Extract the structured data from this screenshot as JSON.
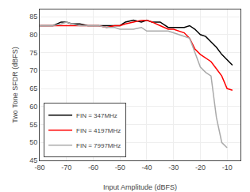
{
  "chart_data": {
    "type": "line",
    "x_label": "Input Amplitude (dBFS)",
    "y_label": "Two Tone SFDR (dBFS)",
    "xlim": [
      -80,
      -5
    ],
    "ylim": [
      45,
      87
    ],
    "xticks": [
      -80,
      -70,
      -60,
      -50,
      -40,
      -30,
      -20,
      -10
    ],
    "yticks": [
      45,
      50,
      55,
      60,
      65,
      70,
      75,
      80,
      85
    ],
    "grid": true,
    "legend": "lower left",
    "series": [
      {
        "name": "FIN = 347MHz",
        "color": "black",
        "x": [
          -80,
          -78,
          -75,
          -72,
          -70,
          -68,
          -65,
          -62,
          -60,
          -58,
          -55,
          -52,
          -50,
          -48,
          -45,
          -42,
          -40,
          -38,
          -35,
          -32,
          -30,
          -28,
          -26,
          -24,
          -22,
          -20,
          -18,
          -16,
          -14,
          -12,
          -10,
          -8
        ],
        "values": [
          82.5,
          82.5,
          82.5,
          83.5,
          83.5,
          83.0,
          83.0,
          82.5,
          82.5,
          82.5,
          82.5,
          82.5,
          82.5,
          83.5,
          84.0,
          83.5,
          84.0,
          83.5,
          83.5,
          82.0,
          82.0,
          82.0,
          82.0,
          82.5,
          81.5,
          80.0,
          79.5,
          78.0,
          76.5,
          74.5,
          73.0,
          71.5
        ]
      },
      {
        "name": "FIN = 4197MHz",
        "color": "red",
        "x": [
          -80,
          -78,
          -75,
          -72,
          -70,
          -68,
          -65,
          -62,
          -60,
          -58,
          -55,
          -52,
          -50,
          -48,
          -45,
          -42,
          -40,
          -38,
          -35,
          -32,
          -30,
          -28,
          -26,
          -24,
          -22,
          -20,
          -18,
          -16,
          -14,
          -12,
          -10,
          -8
        ],
        "values": [
          82.5,
          82.5,
          82.5,
          82.5,
          82.5,
          82.5,
          82.5,
          82.5,
          82.5,
          82.5,
          82.0,
          82.5,
          82.5,
          83.0,
          83.5,
          84.0,
          84.0,
          83.5,
          82.5,
          81.5,
          81.5,
          81.0,
          80.5,
          79.0,
          76.0,
          74.5,
          73.5,
          72.5,
          70.5,
          68.5,
          65.0,
          64.5
        ]
      },
      {
        "name": "FIN = 7997MHz",
        "color": "#aaaaaa",
        "x": [
          -80,
          -78,
          -75,
          -72,
          -70,
          -68,
          -65,
          -62,
          -60,
          -58,
          -55,
          -52,
          -50,
          -48,
          -45,
          -42,
          -40,
          -38,
          -35,
          -32,
          -30,
          -28,
          -26,
          -24,
          -22,
          -20,
          -18,
          -16,
          -14,
          -12,
          -10
        ],
        "values": [
          82.5,
          82.5,
          82.5,
          83.0,
          83.5,
          83.0,
          82.5,
          82.5,
          82.5,
          82.5,
          82.0,
          82.0,
          81.5,
          81.5,
          81.5,
          82.0,
          81.0,
          81.0,
          81.0,
          81.0,
          80.5,
          80.0,
          79.5,
          79.0,
          75.0,
          71.0,
          69.5,
          68.5,
          57.0,
          50.0,
          48.5
        ]
      }
    ]
  }
}
